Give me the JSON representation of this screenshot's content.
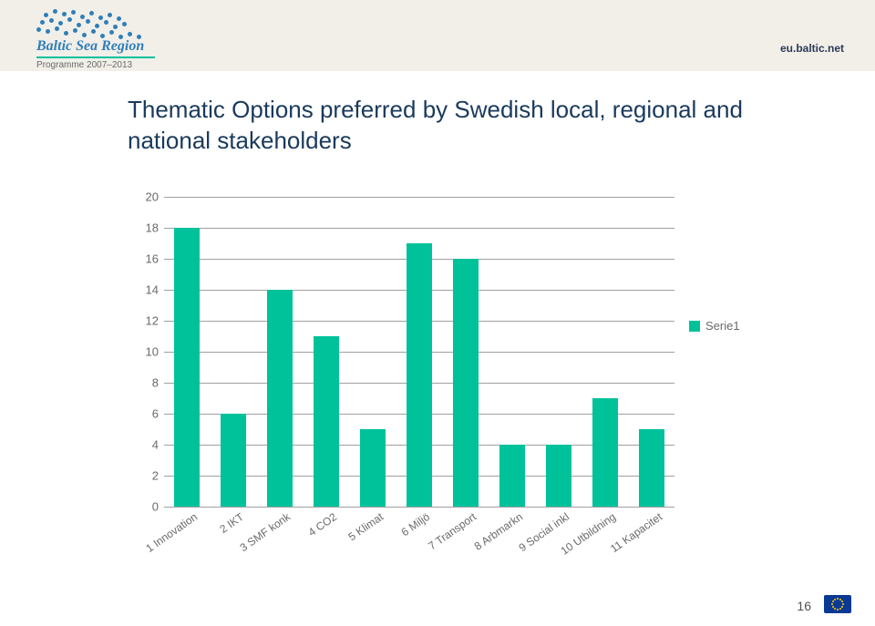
{
  "header": {
    "logo_title": "Baltic Sea Region",
    "logo_subtitle": "Programme 2007–2013",
    "site_link": "eu.baltic.net"
  },
  "title": "Thematic Options preferred by Swedish local, regional and national stakeholders",
  "chart": {
    "type": "bar",
    "series_label": "Serie1",
    "categories": [
      "1 Innovation",
      "2 IKT",
      "3 SMF konk",
      "4 CO2",
      "5 Klimat",
      "6 Miljö",
      "7 Transport",
      "8 Arbmarkn",
      "9 Social inkl",
      "10 Utbildning",
      "11 Kapacitet"
    ],
    "values": [
      18,
      6,
      14,
      11,
      5,
      17,
      16,
      4,
      4,
      7,
      5
    ],
    "bar_color": "#00c29a",
    "ymin": 0,
    "ymax": 20,
    "ytick_step": 2,
    "background_color": "#ffffff",
    "grid_color": "#a0a0a0",
    "bar_width": 0.55,
    "label_fontsize": 13,
    "axis_label_color": "#6a6a6a",
    "title_fontsize": 26,
    "title_color": "#1a3a5c",
    "x_label_rotation": -35
  },
  "page_number": "16"
}
